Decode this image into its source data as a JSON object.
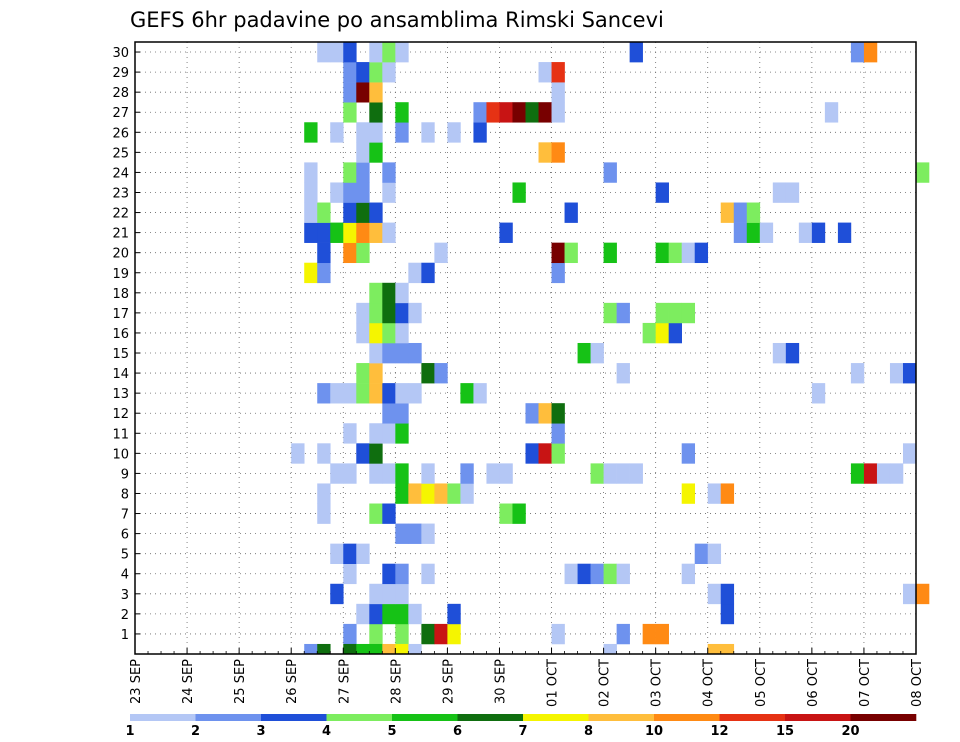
{
  "chart_data": {
    "type": "heatmap",
    "title": "GEFS 6hr padavine po ansamblima Rimski Sancevi",
    "x_tick_labels": [
      "23 SEP",
      "24 SEP",
      "25 SEP",
      "26 SEP",
      "27 SEP",
      "28 SEP",
      "29 SEP",
      "30 SEP",
      "01 OCT",
      "02 OCT",
      "03 OCT",
      "04 OCT",
      "05 OCT",
      "06 OCT",
      "07 OCT",
      "08 OCT"
    ],
    "x_range_days": [
      0,
      15
    ],
    "time_step_hours": 6,
    "y_tick_labels": [
      "1",
      "2",
      "3",
      "4",
      "5",
      "6",
      "7",
      "8",
      "9",
      "10",
      "11",
      "12",
      "13",
      "14",
      "15",
      "16",
      "17",
      "18",
      "19",
      "20",
      "21",
      "22",
      "23",
      "24",
      "25",
      "26",
      "27",
      "28",
      "29",
      "30"
    ],
    "y_range": [
      0,
      30
    ],
    "grid": true,
    "color_levels": [
      1,
      2,
      3,
      4,
      5,
      6,
      7,
      8,
      10,
      12,
      15,
      20
    ],
    "colorbar_labels": [
      "1",
      "2",
      "3",
      "4",
      "5",
      "6",
      "7",
      "8",
      "10",
      "12",
      "15",
      "20"
    ],
    "colors": [
      "#b4c7f5",
      "#6e92ee",
      "#1f4fd8",
      "#7ded5f",
      "#16c216",
      "#0f6e0f",
      "#f5f500",
      "#ffbe3c",
      "#ff8a14",
      "#e63214",
      "#c81414",
      "#780000"
    ],
    "cells": [
      [
        0,
        16,
        2
      ],
      [
        0,
        18,
        4
      ],
      [
        0,
        20,
        4
      ],
      [
        0,
        22,
        6
      ],
      [
        0,
        23,
        11
      ],
      [
        0,
        24,
        7
      ],
      [
        0,
        32,
        1
      ],
      [
        0,
        37,
        2
      ],
      [
        0,
        39,
        9
      ],
      [
        0,
        40,
        9
      ],
      [
        1,
        17,
        1
      ],
      [
        1,
        18,
        3
      ],
      [
        1,
        19,
        5
      ],
      [
        1,
        20,
        5
      ],
      [
        1,
        21,
        1
      ],
      [
        1,
        24,
        3
      ],
      [
        1,
        45,
        3
      ],
      [
        2,
        15,
        3
      ],
      [
        2,
        18,
        1
      ],
      [
        2,
        19,
        1
      ],
      [
        2,
        20,
        1
      ],
      [
        2,
        44,
        1
      ],
      [
        2,
        45,
        3
      ],
      [
        2,
        59,
        1
      ],
      [
        2,
        60,
        9
      ],
      [
        3,
        16,
        1
      ],
      [
        3,
        19,
        3
      ],
      [
        3,
        20,
        2
      ],
      [
        3,
        22,
        1
      ],
      [
        3,
        33,
        1
      ],
      [
        3,
        34,
        3
      ],
      [
        3,
        35,
        2
      ],
      [
        3,
        36,
        4
      ],
      [
        3,
        37,
        1
      ],
      [
        3,
        42,
        1
      ],
      [
        4,
        15,
        1
      ],
      [
        4,
        16,
        3
      ],
      [
        4,
        17,
        1
      ],
      [
        4,
        43,
        2
      ],
      [
        4,
        44,
        1
      ],
      [
        5,
        20,
        2
      ],
      [
        5,
        21,
        2
      ],
      [
        5,
        22,
        1
      ],
      [
        6,
        14,
        1
      ],
      [
        6,
        18,
        4
      ],
      [
        6,
        19,
        3
      ],
      [
        6,
        28,
        4
      ],
      [
        6,
        29,
        5
      ],
      [
        7,
        14,
        1
      ],
      [
        7,
        20,
        5
      ],
      [
        7,
        21,
        8
      ],
      [
        7,
        22,
        7
      ],
      [
        7,
        23,
        8
      ],
      [
        7,
        24,
        4
      ],
      [
        7,
        25,
        1
      ],
      [
        7,
        42,
        7
      ],
      [
        7,
        44,
        1
      ],
      [
        7,
        45,
        9
      ],
      [
        8,
        15,
        1
      ],
      [
        8,
        16,
        1
      ],
      [
        8,
        18,
        1
      ],
      [
        8,
        19,
        1
      ],
      [
        8,
        20,
        5
      ],
      [
        8,
        22,
        1
      ],
      [
        8,
        25,
        2
      ],
      [
        8,
        27,
        1
      ],
      [
        8,
        28,
        1
      ],
      [
        8,
        35,
        4
      ],
      [
        8,
        36,
        1
      ],
      [
        8,
        37,
        1
      ],
      [
        8,
        38,
        1
      ],
      [
        8,
        55,
        5
      ],
      [
        8,
        56,
        11
      ],
      [
        8,
        57,
        1
      ],
      [
        8,
        58,
        1
      ],
      [
        9,
        12,
        1
      ],
      [
        9,
        14,
        1
      ],
      [
        9,
        17,
        3
      ],
      [
        9,
        18,
        6
      ],
      [
        9,
        30,
        3
      ],
      [
        9,
        31,
        11
      ],
      [
        9,
        32,
        4
      ],
      [
        9,
        42,
        2
      ],
      [
        9,
        59,
        1
      ],
      [
        10,
        16,
        1
      ],
      [
        10,
        18,
        1
      ],
      [
        10,
        19,
        1
      ],
      [
        10,
        20,
        5
      ],
      [
        10,
        32,
        2
      ],
      [
        11,
        19,
        2
      ],
      [
        11,
        20,
        2
      ],
      [
        11,
        30,
        2
      ],
      [
        11,
        31,
        8
      ],
      [
        11,
        32,
        6
      ],
      [
        12,
        14,
        2
      ],
      [
        12,
        15,
        1
      ],
      [
        12,
        16,
        1
      ],
      [
        12,
        17,
        4
      ],
      [
        12,
        18,
        8
      ],
      [
        12,
        19,
        3
      ],
      [
        12,
        20,
        1
      ],
      [
        12,
        21,
        1
      ],
      [
        12,
        25,
        5
      ],
      [
        12,
        26,
        1
      ],
      [
        12,
        52,
        1
      ],
      [
        13,
        17,
        4
      ],
      [
        13,
        18,
        8
      ],
      [
        13,
        22,
        6
      ],
      [
        13,
        23,
        2
      ],
      [
        13,
        37,
        1
      ],
      [
        13,
        55,
        1
      ],
      [
        13,
        58,
        1
      ],
      [
        13,
        59,
        3
      ],
      [
        14,
        18,
        1
      ],
      [
        14,
        19,
        2
      ],
      [
        14,
        20,
        2
      ],
      [
        14,
        21,
        2
      ],
      [
        14,
        34,
        5
      ],
      [
        14,
        35,
        1
      ],
      [
        14,
        49,
        1
      ],
      [
        14,
        50,
        3
      ],
      [
        15,
        17,
        1
      ],
      [
        15,
        18,
        7
      ],
      [
        15,
        19,
        4
      ],
      [
        15,
        20,
        1
      ],
      [
        15,
        39,
        4
      ],
      [
        15,
        40,
        7
      ],
      [
        15,
        41,
        3
      ],
      [
        16,
        17,
        1
      ],
      [
        16,
        18,
        4
      ],
      [
        16,
        19,
        6
      ],
      [
        16,
        20,
        3
      ],
      [
        16,
        21,
        1
      ],
      [
        16,
        36,
        4
      ],
      [
        16,
        37,
        2
      ],
      [
        16,
        40,
        4
      ],
      [
        16,
        41,
        4
      ],
      [
        16,
        42,
        4
      ],
      [
        17,
        18,
        4
      ],
      [
        17,
        19,
        6
      ],
      [
        17,
        20,
        1
      ],
      [
        18,
        13,
        7
      ],
      [
        18,
        14,
        2
      ],
      [
        18,
        21,
        1
      ],
      [
        18,
        22,
        3
      ],
      [
        18,
        32,
        2
      ],
      [
        19,
        14,
        3
      ],
      [
        19,
        16,
        9
      ],
      [
        19,
        17,
        4
      ],
      [
        19,
        23,
        1
      ],
      [
        19,
        32,
        12
      ],
      [
        19,
        33,
        4
      ],
      [
        19,
        36,
        5
      ],
      [
        19,
        40,
        5
      ],
      [
        19,
        41,
        4
      ],
      [
        19,
        42,
        1
      ],
      [
        19,
        43,
        3
      ],
      [
        20,
        13,
        3
      ],
      [
        20,
        14,
        3
      ],
      [
        20,
        15,
        5
      ],
      [
        20,
        16,
        7
      ],
      [
        20,
        17,
        9
      ],
      [
        20,
        18,
        8
      ],
      [
        20,
        19,
        1
      ],
      [
        20,
        28,
        3
      ],
      [
        20,
        46,
        2
      ],
      [
        20,
        47,
        5
      ],
      [
        20,
        48,
        1
      ],
      [
        20,
        51,
        1
      ],
      [
        20,
        52,
        3
      ],
      [
        20,
        54,
        3
      ],
      [
        21,
        13,
        1
      ],
      [
        21,
        14,
        4
      ],
      [
        21,
        16,
        3
      ],
      [
        21,
        17,
        6
      ],
      [
        21,
        18,
        3
      ],
      [
        21,
        33,
        3
      ],
      [
        21,
        45,
        8
      ],
      [
        21,
        46,
        2
      ],
      [
        21,
        47,
        4
      ],
      [
        22,
        13,
        1
      ],
      [
        22,
        15,
        1
      ],
      [
        22,
        16,
        2
      ],
      [
        22,
        17,
        2
      ],
      [
        22,
        19,
        1
      ],
      [
        22,
        29,
        5
      ],
      [
        22,
        40,
        3
      ],
      [
        22,
        49,
        1
      ],
      [
        22,
        50,
        1
      ],
      [
        23,
        13,
        1
      ],
      [
        23,
        16,
        4
      ],
      [
        23,
        17,
        2
      ],
      [
        23,
        19,
        2
      ],
      [
        23,
        36,
        2
      ],
      [
        23,
        60,
        4
      ],
      [
        24,
        17,
        1
      ],
      [
        24,
        18,
        5
      ],
      [
        24,
        31,
        8
      ],
      [
        24,
        32,
        9
      ],
      [
        25,
        13,
        5
      ],
      [
        25,
        15,
        1
      ],
      [
        25,
        17,
        1
      ],
      [
        25,
        18,
        1
      ],
      [
        25,
        20,
        2
      ],
      [
        25,
        22,
        1
      ],
      [
        25,
        24,
        1
      ],
      [
        25,
        26,
        3
      ],
      [
        26,
        16,
        4
      ],
      [
        26,
        18,
        6
      ],
      [
        26,
        20,
        5
      ],
      [
        26,
        26,
        2
      ],
      [
        26,
        27,
        10
      ],
      [
        26,
        28,
        11
      ],
      [
        26,
        29,
        12
      ],
      [
        26,
        30,
        6
      ],
      [
        26,
        31,
        12
      ],
      [
        26,
        32,
        1
      ],
      [
        26,
        53,
        1
      ],
      [
        27,
        16,
        2
      ],
      [
        27,
        17,
        12
      ],
      [
        27,
        18,
        8
      ],
      [
        27,
        32,
        1
      ],
      [
        28,
        16,
        2
      ],
      [
        28,
        17,
        3
      ],
      [
        28,
        18,
        4
      ],
      [
        28,
        19,
        1
      ],
      [
        28,
        31,
        1
      ],
      [
        28,
        32,
        10
      ],
      [
        29,
        14,
        1
      ],
      [
        29,
        15,
        1
      ],
      [
        29,
        16,
        3
      ],
      [
        29,
        18,
        1
      ],
      [
        29,
        19,
        4
      ],
      [
        29,
        20,
        1
      ],
      [
        29,
        38,
        3
      ],
      [
        29,
        55,
        2
      ],
      [
        29,
        56,
        9
      ]
    ],
    "bottom_row": [
      [
        13,
        2
      ],
      [
        14,
        6
      ],
      [
        16,
        6
      ],
      [
        17,
        5
      ],
      [
        18,
        5
      ],
      [
        19,
        8
      ],
      [
        20,
        7
      ],
      [
        21,
        1
      ],
      [
        36,
        1
      ],
      [
        44,
        8
      ],
      [
        45,
        8
      ]
    ]
  }
}
